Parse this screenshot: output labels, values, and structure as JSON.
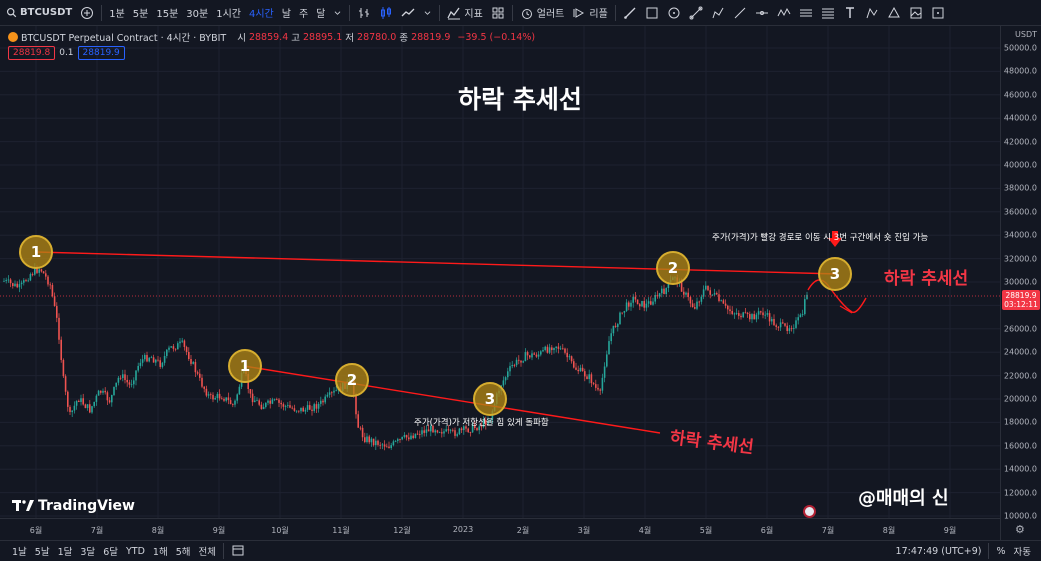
{
  "toolbar": {
    "symbol": "BTCUSDT",
    "intervals": [
      "1분",
      "5분",
      "15분",
      "30분",
      "1시간",
      "4시간",
      "날",
      "주",
      "달"
    ],
    "active_interval": "4시간",
    "indicators_label": "지표",
    "alert_label": "얼러트",
    "replay_label": "리플"
  },
  "legend": {
    "title": "BTCUSDT Perpetual Contract · 4시간 · BYBIT",
    "open_label": "시",
    "open": "28859.4",
    "high_label": "고",
    "high": "28895.1",
    "low_label": "저",
    "low": "28780.0",
    "close_label": "종",
    "close": "28819.9",
    "change": "−39.5 (−0.14%)",
    "sell_price": "28819.8",
    "spread": "0.1",
    "buy_price": "28819.9"
  },
  "price_scale": {
    "currency": "USDT",
    "labels": [
      "50000.0",
      "48000.0",
      "46000.0",
      "44000.0",
      "42000.0",
      "40000.0",
      "38000.0",
      "36000.0",
      "34000.0",
      "32000.0",
      "30000.0",
      "28000.0",
      "26000.0",
      "24000.0",
      "22000.0",
      "20000.0",
      "18000.0",
      "16000.0",
      "14000.0",
      "12000.0",
      "10000.0"
    ],
    "last_price": "28819.9",
    "countdown": "03:12:11"
  },
  "time_axis": [
    "6월",
    "7월",
    "8월",
    "9월",
    "10월",
    "11월",
    "12월",
    "2023",
    "2월",
    "3월",
    "4월",
    "5월",
    "6월",
    "7월",
    "8월",
    "9월"
  ],
  "drawings": {
    "title": "하락 추세선",
    "upper_line_label": "하락 추세선",
    "lower_line_label": "하락 추세선",
    "upper_annotation": "주가(가격)가 빨강 경로로 이동 시 3번 구간에서 숏 진입 가능",
    "lower_annotation": "주가(가격)가 저항선을 힘 있게 돌파함",
    "upper_points": [
      "1",
      "2",
      "3"
    ],
    "lower_points": [
      "1",
      "2",
      "3"
    ],
    "watermark": "@매매의 신"
  },
  "branding": "TradingView",
  "bottom_bar": {
    "ranges": [
      "1날",
      "5날",
      "1달",
      "3달",
      "6달",
      "YTD",
      "1해",
      "5해",
      "전체"
    ],
    "clock": "17:47:49 (UTC+9)",
    "percent": "%",
    "auto": "자동"
  },
  "colors": {
    "up": "#26a69a",
    "down": "#ef5350",
    "trendline": "#ff0000",
    "accent": "#2962ff",
    "marker": "#b08414"
  }
}
